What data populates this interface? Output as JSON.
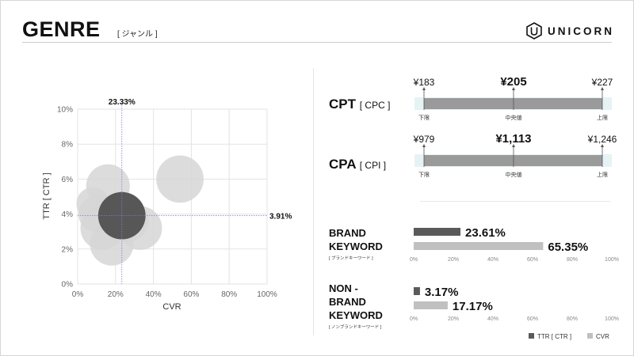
{
  "header": {
    "title": "GENRE",
    "subtitle": "[ ジャンル ]",
    "logo_text": "UNICORN"
  },
  "chart_data": [
    {
      "type": "scatter",
      "variant": "bubble",
      "title": "",
      "xlabel": "CVR",
      "ylabel": "TTR [ CTR ]",
      "xlim": [
        0,
        100
      ],
      "ylim": [
        0,
        10
      ],
      "x_ticks": [
        "0%",
        "20%",
        "40%",
        "60%",
        "80%",
        "100%"
      ],
      "y_ticks": [
        "0%",
        "2%",
        "4%",
        "6%",
        "8%",
        "10%"
      ],
      "grid": true,
      "series": [
        {
          "points": [
            {
              "x": 54,
              "y": 6.0,
              "r": 13
            },
            {
              "x": 16,
              "y": 5.6,
              "r": 12
            },
            {
              "x": 8,
              "y": 4.6,
              "r": 9
            },
            {
              "x": 10,
              "y": 4.0,
              "r": 10
            },
            {
              "x": 13,
              "y": 3.2,
              "r": 12
            },
            {
              "x": 33,
              "y": 3.2,
              "r": 12
            },
            {
              "x": 27,
              "y": 3.6,
              "r": 11
            },
            {
              "x": 18,
              "y": 2.3,
              "r": 12
            },
            {
              "x": 23.33,
              "y": 3.91,
              "r": 13,
              "highlight": true
            }
          ]
        }
      ],
      "reference_lines": {
        "x": 23.33,
        "x_label": "23.33%",
        "y": 3.91,
        "y_label": "3.91%"
      }
    },
    {
      "type": "range",
      "rows": [
        {
          "name": "CPT",
          "sub": "[ CPC ]",
          "low": "¥183",
          "mid": "¥205",
          "high": "¥227",
          "low_label": "下限",
          "mid_label": "中央値",
          "high_label": "上限"
        },
        {
          "name": "CPA",
          "sub": "[ CPI ]",
          "low": "¥979",
          "mid": "¥1,113",
          "high": "¥1,246",
          "low_label": "下限",
          "mid_label": "中央値",
          "high_label": "上限"
        }
      ]
    },
    {
      "type": "bar",
      "orientation": "horizontal",
      "xlim": [
        0,
        100
      ],
      "x_ticks": [
        "0%",
        "20%",
        "40%",
        "60%",
        "80%",
        "100%"
      ],
      "legend": {
        "placement": "bottom-right",
        "items": [
          "TTR [ CTR ]",
          "CVR"
        ]
      },
      "groups": [
        {
          "name": "BRAND\nKEYWORD",
          "sub": "[ ブランドキーワード ]",
          "series": [
            {
              "name": "TTR [ CTR ]",
              "value": 23.61,
              "label": "23.61%"
            },
            {
              "name": "CVR",
              "value": 65.35,
              "label": "65.35%"
            }
          ]
        },
        {
          "name": "NON -\nBRAND\nKEYWORD",
          "sub": "[ ノンブランドキーワード ]",
          "series": [
            {
              "name": "TTR [ CTR ]",
              "value": 3.17,
              "label": "3.17%"
            },
            {
              "name": "CVR",
              "value": 17.17,
              "label": "17.17%"
            }
          ]
        }
      ]
    }
  ],
  "colors": {
    "dark": "#5a5a5a",
    "light": "#c0c0c0",
    "bubble": "#d6d6d6",
    "highlight": "#575757",
    "range_bar": "#9a9a9a",
    "range_cap": "#e6f3f5",
    "grid": "#e3e3e3",
    "ref": "#7b7bd6"
  }
}
